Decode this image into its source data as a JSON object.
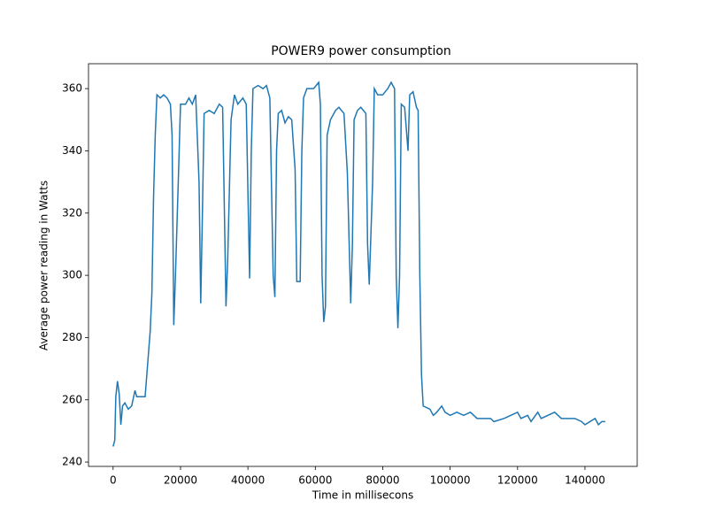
{
  "chart_data": {
    "type": "line",
    "title": "POWER9 power consumption",
    "x_label": "Time in millisecons",
    "y_label": "Average power reading in Watts",
    "xlim": [
      -7300,
      155500
    ],
    "ylim": [
      238.6,
      368
    ],
    "xticks": [
      0,
      20000,
      40000,
      60000,
      80000,
      100000,
      120000,
      140000
    ],
    "yticks": [
      240,
      260,
      280,
      300,
      320,
      340,
      360
    ],
    "series": [
      {
        "color": "#1f77b4",
        "x": [
          0,
          500,
          800,
          1300,
          1800,
          2300,
          2800,
          3500,
          4500,
          5500,
          6500,
          7000,
          9500,
          10000,
          11000,
          11500,
          12000,
          12500,
          13000,
          14000,
          15000,
          16000,
          17000,
          17500,
          18000,
          18500,
          19500,
          20000,
          21500,
          22500,
          23500,
          24500,
          25500,
          26000,
          26500,
          27000,
          28500,
          30000,
          31500,
          32500,
          33500,
          34000,
          35000,
          36000,
          37000,
          38500,
          39500,
          40500,
          41000,
          41500,
          43000,
          44500,
          45500,
          46500,
          47500,
          48000,
          48500,
          49000,
          50000,
          51000,
          52000,
          53000,
          54000,
          54500,
          55500,
          56000,
          56500,
          57500,
          59500,
          61000,
          61500,
          62000,
          62500,
          63000,
          63500,
          64500,
          66000,
          67000,
          68500,
          69500,
          70500,
          71000,
          71500,
          72500,
          73500,
          75000,
          75500,
          76000,
          77000,
          77500,
          78500,
          80000,
          81500,
          82500,
          83500,
          84000,
          84500,
          85000,
          85500,
          86500,
          87500,
          88000,
          89000,
          90000,
          90500,
          91000,
          91500,
          92000,
          94000,
          95000,
          96000,
          97500,
          98500,
          100000,
          102000,
          104000,
          106000,
          108000,
          112000,
          113000,
          116000,
          118000,
          120000,
          121000,
          123000,
          124000,
          126000,
          127000,
          129000,
          131000,
          133000,
          137000,
          139000,
          140000,
          143000,
          144000,
          145000,
          146000
        ],
        "values": [
          245,
          247,
          261,
          266,
          262,
          252,
          258,
          259,
          257,
          258,
          263,
          261,
          261,
          268,
          282,
          294,
          325,
          345,
          358,
          357,
          358,
          357,
          355,
          345,
          284,
          300,
          336,
          355,
          355,
          357,
          355,
          358,
          330,
          291,
          320,
          352,
          353,
          352,
          355,
          354,
          290,
          305,
          350,
          358,
          355,
          357,
          355,
          299,
          340,
          360,
          361,
          360,
          361,
          357,
          300,
          293,
          340,
          352,
          353,
          349,
          351,
          350,
          334,
          298,
          298,
          340,
          357,
          360,
          360,
          362,
          355,
          300,
          285,
          290,
          345,
          350,
          353,
          354,
          352,
          333,
          291,
          310,
          350,
          353,
          354,
          352,
          310,
          297,
          330,
          360,
          358,
          358,
          360,
          362,
          360,
          300,
          283,
          300,
          355,
          354,
          340,
          358,
          359,
          354,
          353,
          300,
          268,
          258,
          257,
          255,
          256,
          258,
          256,
          255,
          256,
          255,
          256,
          254,
          254,
          253,
          254,
          255,
          256,
          254,
          255,
          253,
          256,
          254,
          255,
          256,
          254,
          254,
          253,
          252,
          254,
          252,
          253,
          253
        ]
      }
    ]
  }
}
